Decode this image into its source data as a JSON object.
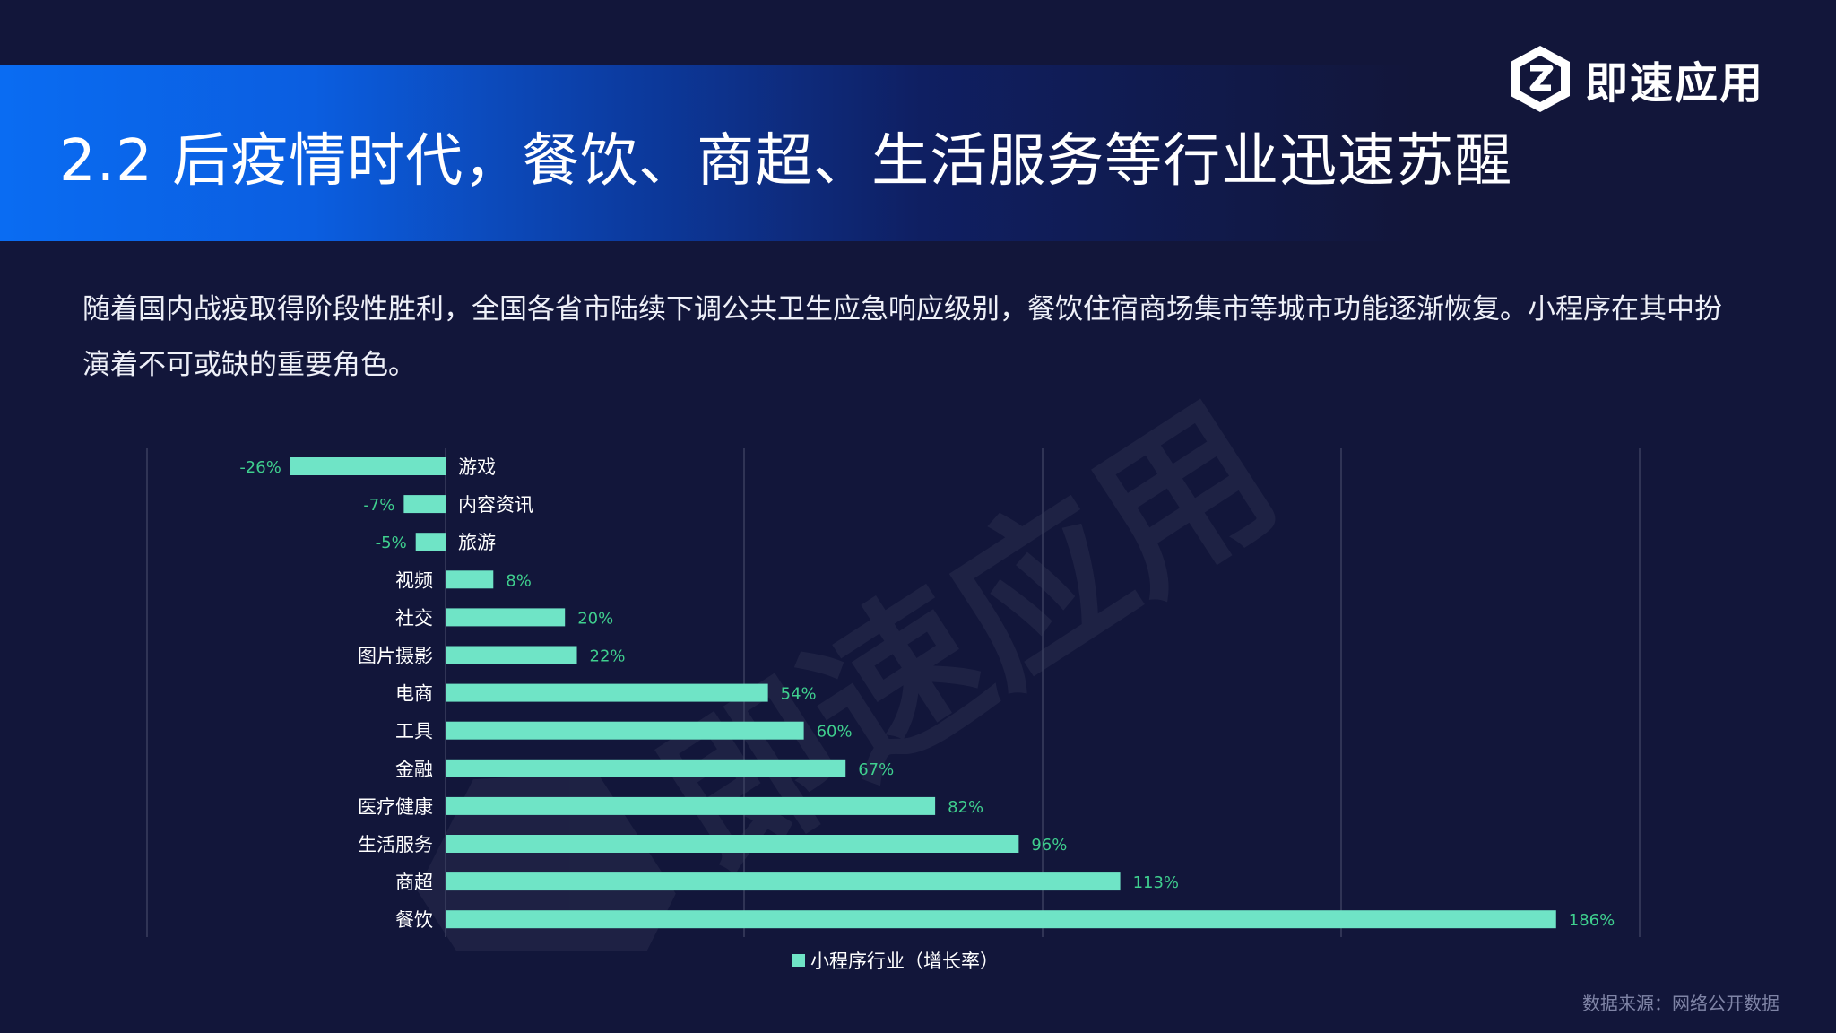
{
  "page": {
    "title": "2.2 后疫情时代，餐饮、商超、生活服务等行业迅速苏醒",
    "logo_text": "即速应用",
    "logo_icon": "brand-z-hexagon-icon",
    "intro": "随着国内战疫取得阶段性胜利，全国各省市陆续下调公共卫生应急响应级别，餐饮住宿商场集市等城市功能逐渐恢复。小程序在其中扮演着不可或缺的重要角色。",
    "source": "数据来源：网络公开数据",
    "watermark_text": "即速应用"
  },
  "colors": {
    "background": "#12163a",
    "title_gradient_start": "#0a6cf2",
    "bar": "#6fe4c6",
    "data_label": "#3fcf8e",
    "gridline": "#3a3f5e",
    "label_text": "#ffffff",
    "source_text": "#7f84a6"
  },
  "chart_data": {
    "type": "bar",
    "orientation": "horizontal",
    "categories": [
      "游戏",
      "内容资讯",
      "旅游",
      "视频",
      "社交",
      "图片摄影",
      "电商",
      "工具",
      "金融",
      "医疗健康",
      "生活服务",
      "商超",
      "餐饮"
    ],
    "series": [
      {
        "name": "小程序行业（增长率）",
        "values": [
          -26,
          -7,
          -5,
          8,
          20,
          22,
          54,
          60,
          67,
          82,
          96,
          113,
          186
        ],
        "labels": [
          "-26%",
          "-7%",
          "-5%",
          "8%",
          "20%",
          "22%",
          "54%",
          "60%",
          "67%",
          "82%",
          "96%",
          "113%",
          "186%"
        ]
      }
    ],
    "xlim": [
      -50,
      200
    ],
    "grid": true,
    "legend": "bottom",
    "title": "",
    "xlabel": "",
    "ylabel": ""
  }
}
